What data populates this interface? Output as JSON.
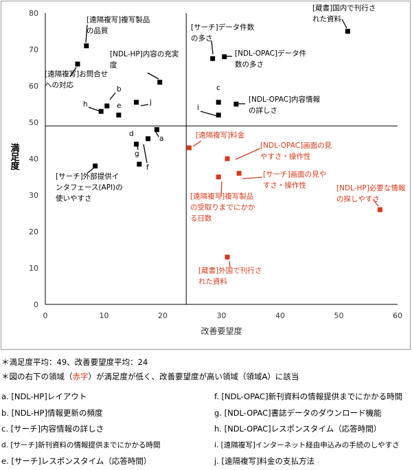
{
  "chart_data": {
    "type": "scatter",
    "title": "",
    "xlabel": "改善要望度",
    "ylabel": "満足度",
    "xlim": [
      0,
      60
    ],
    "ylim": [
      0,
      80
    ],
    "xticks": [
      0,
      10,
      20,
      30,
      40,
      50,
      60
    ],
    "yticks": [
      0,
      10,
      20,
      30,
      40,
      50,
      60,
      70,
      80
    ],
    "x_avg": 24,
    "y_avg": 49,
    "points": [
      {
        "label": "[遠隔複写]複写製品の品質",
        "x": 7,
        "y": 71,
        "color": "#000000"
      },
      {
        "label": "[NDL-HP]内容の充実度",
        "x": 19.5,
        "y": 61,
        "color": "#000000"
      },
      {
        "label": "[遠隔複写]お問合せへの対応",
        "x": 5.5,
        "y": 66,
        "color": "#000000"
      },
      {
        "label": "[サーチ]データ件数の多さ",
        "x": 28.5,
        "y": 67.5,
        "color": "#000000"
      },
      {
        "label": "[NDL-OPAC]データ件数の多さ",
        "x": 30.5,
        "y": 68,
        "color": "#000000"
      },
      {
        "label": "[蔵書]国内で刊行された資料",
        "x": 51.5,
        "y": 75,
        "color": "#000000"
      },
      {
        "label": "[NDL-OPAC]内容情報の詳しさ",
        "x": 32.5,
        "y": 55,
        "color": "#000000"
      },
      {
        "label": "b",
        "x": 10.5,
        "y": 54.5,
        "color": "#000000"
      },
      {
        "label": "h",
        "x": 9.5,
        "y": 53,
        "color": "#000000"
      },
      {
        "label": "e",
        "x": 12.5,
        "y": 52,
        "color": "#000000"
      },
      {
        "label": "j",
        "x": 15.5,
        "y": 55.5,
        "color": "#000000"
      },
      {
        "label": "c",
        "x": 29.5,
        "y": 55.5,
        "color": "#000000"
      },
      {
        "label": "i",
        "x": 29.5,
        "y": 52,
        "color": "#000000"
      },
      {
        "label": "a",
        "x": 19,
        "y": 48,
        "color": "#000000"
      },
      {
        "label": "d",
        "x": 15.5,
        "y": 44,
        "color": "#000000"
      },
      {
        "label": "g",
        "x": 16,
        "y": 38.5,
        "color": "#000000"
      },
      {
        "label": "f",
        "x": 17.5,
        "y": 45.5,
        "color": "#000000"
      },
      {
        "label": "[サーチ]外部提供インタフェース(API)の使いやすさ",
        "x": 8.5,
        "y": 38,
        "color": "#000000"
      },
      {
        "label": "[遠隔複写]料金",
        "x": 24.5,
        "y": 43,
        "color": "#d63a1a"
      },
      {
        "label": "[NDL-OPAC]画面の見やすさ・操作性",
        "x": 31,
        "y": 40,
        "color": "#d63a1a"
      },
      {
        "label": "[サーチ]画面の見やすさ・操作性",
        "x": 33,
        "y": 36,
        "color": "#d63a1a"
      },
      {
        "label": "[遠隔複写]複写製品の受取りまでにかかる日数",
        "x": 29.5,
        "y": 35,
        "color": "#d63a1a"
      },
      {
        "label": "[NDL-HP]必要な情報の探しやすさ",
        "x": 57,
        "y": 26,
        "color": "#d63a1a"
      },
      {
        "label": "[蔵書]外国で刊行された資料",
        "x": 31,
        "y": 13,
        "color": "#d63a1a"
      }
    ],
    "annotations": [
      {
        "text": [
          "[遠隔複写]複写製品",
          "の品質"
        ],
        "color": "#000000"
      },
      {
        "text": [
          "[NDL-HP]内容の充実",
          "度"
        ],
        "color": "#000000"
      },
      {
        "text": [
          "[遠隔複写]お問合せ",
          "への対応"
        ],
        "color": "#000000"
      },
      {
        "text": [
          "[サーチ]データ件数",
          "の多さ"
        ],
        "color": "#000000"
      },
      {
        "text": [
          "[NDL-OPAC]データ件",
          "数の多さ"
        ],
        "color": "#000000"
      },
      {
        "text": [
          "[蔵書]国内で刊行さ",
          "れた資料"
        ],
        "color": "#000000"
      },
      {
        "text": [
          "[NDL-OPAC]内容情報",
          "の詳しさ"
        ],
        "color": "#000000"
      },
      {
        "text": [
          "b"
        ],
        "color": "#000000"
      },
      {
        "text": [
          "h"
        ],
        "color": "#000000"
      },
      {
        "text": [
          "e"
        ],
        "color": "#000000"
      },
      {
        "text": [
          "j"
        ],
        "color": "#000000"
      },
      {
        "text": [
          "c"
        ],
        "color": "#000000"
      },
      {
        "text": [
          "i"
        ],
        "color": "#000000"
      },
      {
        "text": [
          "a"
        ],
        "color": "#000000"
      },
      {
        "text": [
          "d"
        ],
        "color": "#000000"
      },
      {
        "text": [
          "g"
        ],
        "color": "#000000"
      },
      {
        "text": [
          "f"
        ],
        "color": "#000000"
      },
      {
        "text": [
          "[サーチ]外部提供イ",
          "ンタフェース(API)の",
          "使いやすさ"
        ],
        "color": "#000000"
      },
      {
        "text": [
          "[遠隔複写]料金"
        ],
        "color": "#d63a1a"
      },
      {
        "text": [
          "[NDL-OPAC]画面の見",
          "やすさ・操作性"
        ],
        "color": "#d63a1a"
      },
      {
        "text": [
          "[サーチ]画面の見や",
          "すさ・操作性"
        ],
        "color": "#d63a1a"
      },
      {
        "text": [
          "[遠隔複写]複写製品",
          "の受取りまでにかか",
          "る日数"
        ],
        "color": "#d63a1a"
      },
      {
        "text": [
          "[NDL-HP]必要な情報",
          "の探しやすさ"
        ],
        "color": "#d63a1a"
      },
      {
        "text": [
          "[蔵書]外国で刊行さ",
          "れた資料"
        ],
        "color": "#d63a1a"
      }
    ]
  },
  "notes": {
    "line1": "＊満足度平均：49、改善要望度平均：24",
    "line2_pre": "＊図の右下の領域（",
    "line2_red": "赤字",
    "line2_post": "）が満足度が低く、改善要望度が高い領域（領域A）に該当"
  },
  "legend": {
    "left": [
      "a. [NDL-HP]レイアウト",
      "b. [NDL-HP]情報更新の頻度",
      "c. [サーチ]内容情報の詳しさ",
      "d. [サーチ]新刊資料の情報提供までにかかる時間",
      "e. [サーチ]レスポンスタイム（応答時間）"
    ],
    "right": [
      "f. [NDL-OPAC]新刊資料の情報提供までにかかる時間",
      "g. [NDL-OPAC]書誌データのダウンロード機能",
      "h. [NDL-OPAC]レスポンスタイム（応答時間）",
      "i. [遠隔複写]インターネット経由申込みの手続のしやすさ",
      "j. [遠隔複写]料金の支払方法"
    ]
  },
  "colors": {
    "black": "#000000",
    "red": "#d63a1a",
    "axis": "#000000",
    "frame": "#9a9a9a"
  }
}
